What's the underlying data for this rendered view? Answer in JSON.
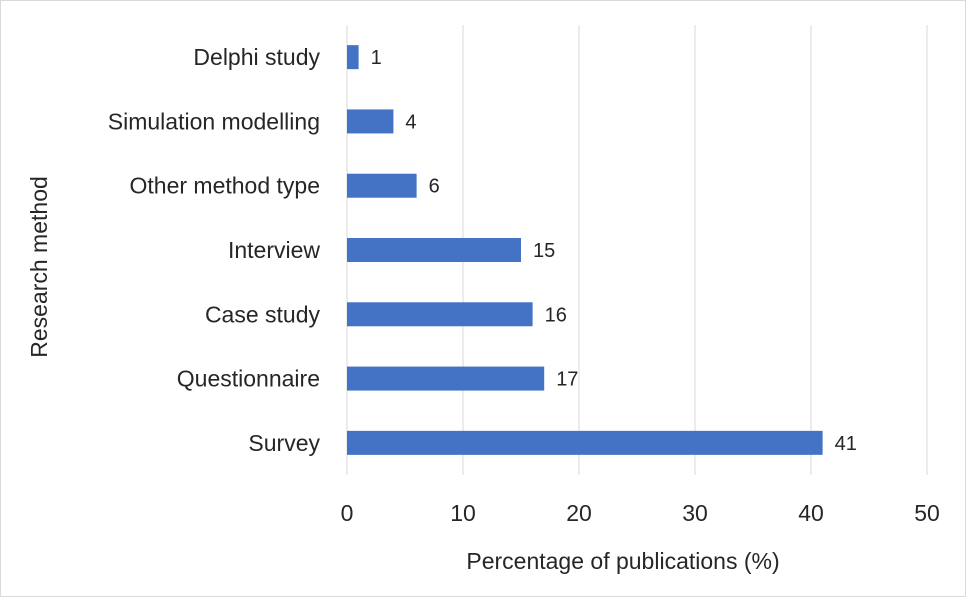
{
  "chart_data": {
    "type": "bar",
    "orientation": "horizontal",
    "categories": [
      "Delphi study",
      "Simulation modelling",
      "Other method type",
      "Interview",
      "Case study",
      "Questionnaire",
      "Survey"
    ],
    "values": [
      1,
      4,
      6,
      15,
      16,
      17,
      41
    ],
    "data_labels": [
      "1",
      "4",
      "6",
      "15",
      "16",
      "17",
      "41"
    ],
    "xlabel": "Percentage of publications (%)",
    "ylabel": "Research method",
    "xlim": [
      0,
      50
    ],
    "xticks": [
      0,
      10,
      20,
      30,
      40,
      50
    ],
    "xtick_labels": [
      "0",
      "10",
      "20",
      "30",
      "40",
      "50"
    ],
    "bar_color": "#4472c4",
    "grid": "vertical",
    "legend": "none"
  }
}
